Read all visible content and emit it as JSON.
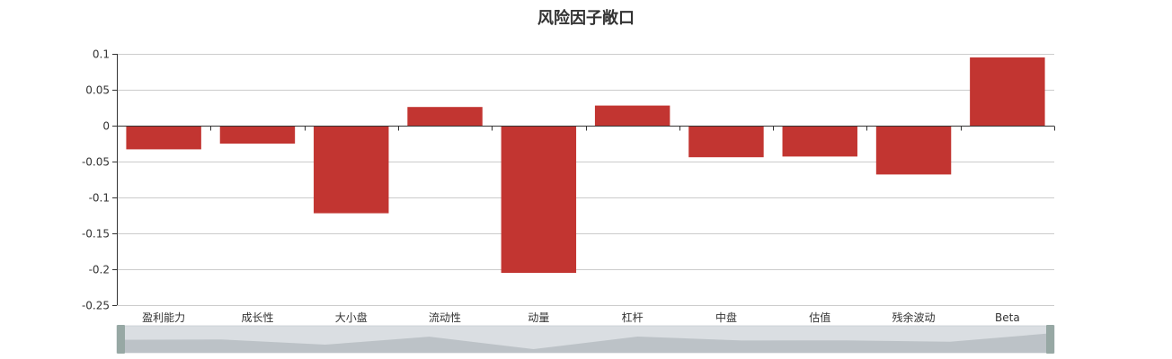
{
  "chart_data": {
    "type": "bar",
    "title": "风险因子敞口",
    "categories": [
      "盈利能力",
      "成长性",
      "大小盘",
      "流动性",
      "动量",
      "杠杆",
      "中盘",
      "估值",
      "残余波动",
      "Beta"
    ],
    "values": [
      -0.033,
      -0.025,
      -0.122,
      0.026,
      -0.205,
      0.028,
      -0.044,
      -0.043,
      -0.068,
      0.095
    ],
    "ylim": [
      -0.25,
      0.1
    ],
    "yticks": [
      "0.1",
      "0.05",
      "0",
      "-0.05",
      "-0.1",
      "-0.15",
      "-0.2",
      "-0.25"
    ],
    "ytick_values": [
      0.1,
      0.05,
      0,
      -0.05,
      -0.1,
      -0.15,
      -0.2,
      -0.25
    ],
    "xlabel": "",
    "ylabel": "",
    "grid": true,
    "bar_color": "#c23531",
    "data_zoom": {
      "start_percent": 0,
      "end_percent": 100
    }
  }
}
